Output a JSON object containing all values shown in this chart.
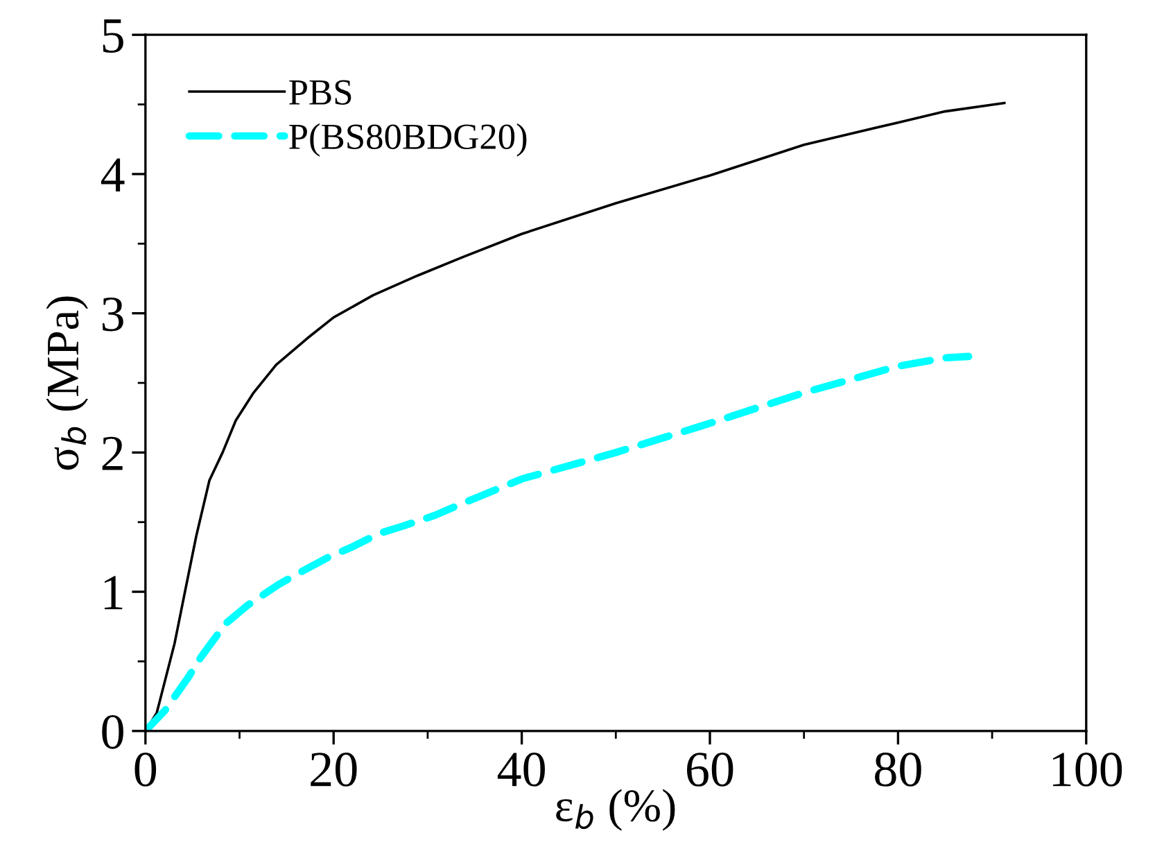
{
  "chart_data": {
    "type": "line",
    "xlabel": "ε$_{b}$ (%)",
    "ylabel": "σ$_{b}$ (MPa)",
    "xlim": [
      0,
      100
    ],
    "ylim": [
      0,
      5
    ],
    "xticks": [
      0,
      {
        "value": 10,
        "label": null
      },
      20,
      {
        "value": 30,
        "label": null
      },
      40,
      {
        "value": 50,
        "label": null
      },
      60,
      {
        "value": 70,
        "label": null
      },
      80,
      {
        "value": 90,
        "label": null
      },
      100
    ],
    "yticks": [
      0,
      {
        "value": 0.5,
        "label": null
      },
      1,
      {
        "value": 1.5,
        "label": null
      },
      2,
      {
        "value": 2.5,
        "label": null
      },
      3,
      {
        "value": 3.5,
        "label": null
      },
      4,
      {
        "value": 4.5,
        "label": null
      },
      5
    ],
    "grid": false,
    "legend": "top left",
    "series": [
      {
        "name": "PBS",
        "color": "#000000",
        "line_style": "solid",
        "x": [
          0,
          1.2,
          3.1,
          4.2,
          5.4,
          6.8,
          8.2,
          9.6,
          11.5,
          13.9,
          17.2,
          20,
          24.2,
          28.9,
          33.6,
          40,
          50,
          60,
          70,
          80,
          85,
          91.3
        ],
        "values": [
          0,
          0.13,
          0.63,
          1.0,
          1.4,
          1.8,
          2.0,
          2.23,
          2.43,
          2.63,
          2.82,
          2.97,
          3.13,
          3.27,
          3.4,
          3.57,
          3.79,
          3.99,
          4.21,
          4.37,
          4.45,
          4.51
        ]
      },
      {
        "name": "P(BS80BDG20)",
        "color": "#00ffff",
        "line_style": "dashed",
        "x": [
          0,
          2.1,
          4.5,
          5.9,
          8.5,
          10.8,
          14.1,
          16.2,
          19.5,
          21.9,
          24.9,
          27.3,
          30.8,
          33.2,
          40,
          50,
          60,
          70,
          80,
          85,
          87.5
        ],
        "values": [
          0,
          0.15,
          0.38,
          0.53,
          0.77,
          0.9,
          1.05,
          1.13,
          1.25,
          1.32,
          1.42,
          1.47,
          1.55,
          1.62,
          1.81,
          2.0,
          2.21,
          2.43,
          2.62,
          2.68,
          2.69
        ]
      }
    ]
  }
}
